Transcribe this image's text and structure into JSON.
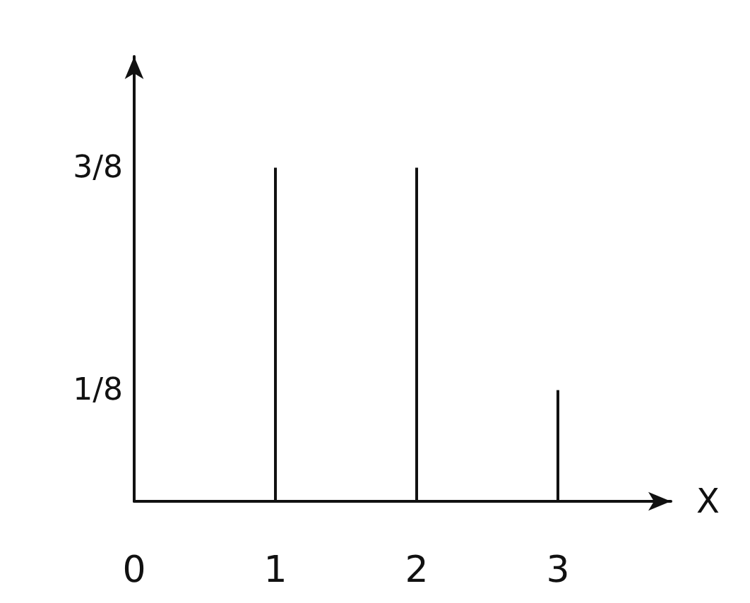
{
  "chart_data": {
    "type": "bar",
    "xlabel": "X",
    "x": [
      1,
      2,
      3
    ],
    "values": [
      0.375,
      0.375,
      0.125
    ],
    "color": "#111111",
    "xlim": [
      0,
      3.8
    ],
    "xticks": [
      0,
      1,
      2,
      3
    ],
    "ylim": [
      0,
      0.5
    ],
    "yticks": [
      {
        "value": 0.125,
        "label": "1/8"
      },
      {
        "value": 0.375,
        "label": "3/8"
      }
    ],
    "grid": false
  }
}
